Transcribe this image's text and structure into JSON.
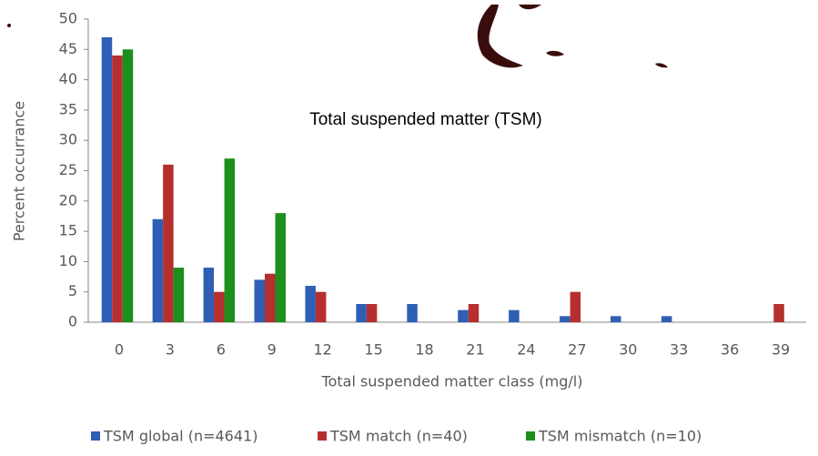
{
  "chart_data": {
    "type": "bar",
    "title": "Total suspended matter (TSM)",
    "x_label": "Total suspended matter class (mg/l)",
    "y_label": "Percent occurrance",
    "categories": [
      "0",
      "3",
      "6",
      "9",
      "12",
      "15",
      "18",
      "21",
      "24",
      "27",
      "30",
      "33",
      "36",
      "39"
    ],
    "series": [
      {
        "name": "TSM global (n=4641)",
        "color": "#2e5fb4",
        "values": [
          47,
          17,
          9,
          7,
          6,
          3,
          3,
          2,
          2,
          1,
          1,
          1,
          0,
          0
        ]
      },
      {
        "name": "TSM match (n=40)",
        "color": "#b62f2f",
        "values": [
          44,
          26,
          5,
          8,
          5,
          3,
          0,
          3,
          0,
          5,
          0,
          0,
          0,
          3
        ]
      },
      {
        "name": "TSM mismatch (n=10)",
        "color": "#1d8f1d",
        "values": [
          45,
          9,
          27,
          18,
          0,
          0,
          0,
          0,
          0,
          0,
          0,
          0,
          0,
          0
        ]
      }
    ],
    "ylim": [
      0,
      50
    ],
    "yticks": [
      0,
      5,
      10,
      15,
      20,
      25,
      30,
      35,
      40,
      45,
      50
    ],
    "grid": false,
    "legend": "bottom"
  }
}
